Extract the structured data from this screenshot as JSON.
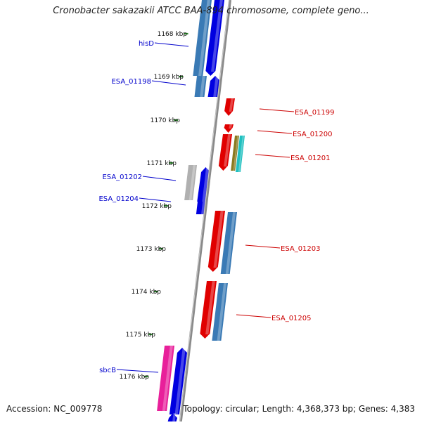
{
  "title": "Cronobacter sakazakii ATCC BAA-894 chromosome, complete geno...",
  "accession": "Accession: NC_009778",
  "summary": "Topology: circular; Length: 4,368,373 bp; Genes: 4,383",
  "colors": {
    "backbone": "#8a8a8a",
    "tick": "#2e8b2e",
    "forward_gene": "#e00000",
    "reverse_gene": "#0000e0",
    "steelblue_gene": "#3a7ab5",
    "gray_gene": "#b0b0b0",
    "pink_gene": "#e8209a",
    "left_label": "#0000cc",
    "right_label": "#cc0000"
  },
  "kbp_labels": [
    "1168 kbp",
    "1169 kbp",
    "1170 kbp",
    "1171 kbp",
    "1172 kbp",
    "1173 kbp",
    "1174 kbp",
    "1175 kbp",
    "1176 kbp"
  ],
  "left_genes": [
    "hisD",
    "ESA_01198",
    "ESA_01202",
    "ESA_01204",
    "sbcB"
  ],
  "right_genes": [
    "ESA_01199",
    "ESA_01200",
    "ESA_01201",
    "ESA_01203",
    "ESA_01205"
  ]
}
